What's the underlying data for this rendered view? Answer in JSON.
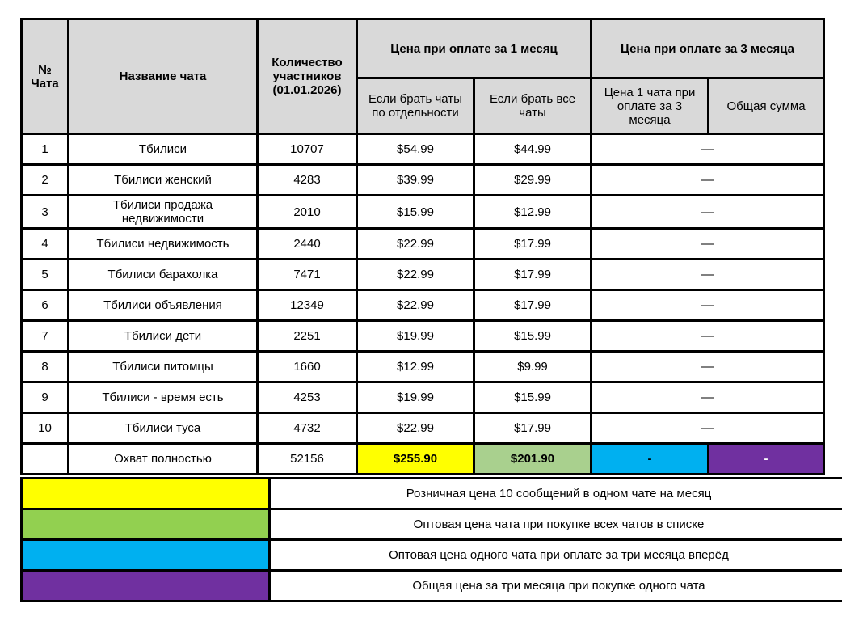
{
  "main_table": {
    "header": {
      "col_chat_number": "№\nЧата",
      "col_chat_name": "Название чата",
      "col_participants": "Количество участников (01.01.2026)",
      "group_month1": "Цена при оплате за 1 месяц",
      "group_month3": "Цена при оплате за 3 месяца",
      "col_individual": "Если брать чаты по отдельности",
      "col_all_chats": "Если брать все чаты",
      "col_single_3m": "Цена 1 чата при оплате за 3 месяца",
      "col_total_sum": "Общая сумма"
    },
    "rows": [
      {
        "num": "1",
        "name": "Тбилиси",
        "participants": "10707",
        "price_individual": "$54.99",
        "price_all_chats": "$44.99",
        "price_3m": "—"
      },
      {
        "num": "2",
        "name": "Тбилиси женский",
        "participants": "4283",
        "price_individual": "$39.99",
        "price_all_chats": "$29.99",
        "price_3m": "—"
      },
      {
        "num": "3",
        "name": "Тбилиси продажа недвижимости",
        "participants": "2010",
        "price_individual": "$15.99",
        "price_all_chats": "$12.99",
        "price_3m": "—"
      },
      {
        "num": "4",
        "name": "Тбилиси недвижимость",
        "participants": "2440",
        "price_individual": "$22.99",
        "price_all_chats": "$17.99",
        "price_3m": "—"
      },
      {
        "num": "5",
        "name": "Тбилиси барахолка",
        "participants": "7471",
        "price_individual": "$22.99",
        "price_all_chats": "$17.99",
        "price_3m": "—"
      },
      {
        "num": "6",
        "name": "Тбилиси объявления",
        "participants": "12349",
        "price_individual": "$22.99",
        "price_all_chats": "$17.99",
        "price_3m": "—"
      },
      {
        "num": "7",
        "name": "Тбилиси дети",
        "participants": "2251",
        "price_individual": "$19.99",
        "price_all_chats": "$15.99",
        "price_3m": "—"
      },
      {
        "num": "8",
        "name": "Тбилиси питомцы",
        "participants": "1660",
        "price_individual": "$12.99",
        "price_all_chats": "$9.99",
        "price_3m": "—"
      },
      {
        "num": "9",
        "name": "Тбилиси - время есть",
        "participants": "4253",
        "price_individual": "$19.99",
        "price_all_chats": "$15.99",
        "price_3m": "—"
      },
      {
        "num": "10",
        "name": "Тбилиси туса",
        "participants": "4732",
        "price_individual": "$22.99",
        "price_all_chats": "$17.99",
        "price_3m": "—"
      }
    ],
    "total_row": {
      "num": "",
      "name": "Охват полностью",
      "participants": "52156",
      "price_individual": "$255.90",
      "price_all_chats": "$201.90",
      "price_single_3m": "-",
      "price_total_sum": "-"
    }
  },
  "legend": {
    "items": [
      {
        "key": "retail-price",
        "color": "#ffff00",
        "label": "Розничная цена 10 сообщений в одном чате на месяц"
      },
      {
        "key": "wholesale-all-chats",
        "color": "#92d050",
        "label": "Оптовая цена чата при покупке всех чатов в списке"
      },
      {
        "key": "wholesale-3-months",
        "color": "#00b0f0",
        "label": "Оптовая цена одного чата при оплате за три месяца вперёд"
      },
      {
        "key": "total-3-months",
        "color": "#7030a0",
        "label": "Общая цена за три месяца при покупке одного чата"
      }
    ]
  },
  "colors": {
    "header_bg": "#d9d9d9",
    "border": "#000000",
    "yellow": "#ffff00",
    "green_total_cell": "#a9d08e",
    "green_legend": "#92d050",
    "blue": "#00b0f0",
    "purple": "#7030a0"
  }
}
